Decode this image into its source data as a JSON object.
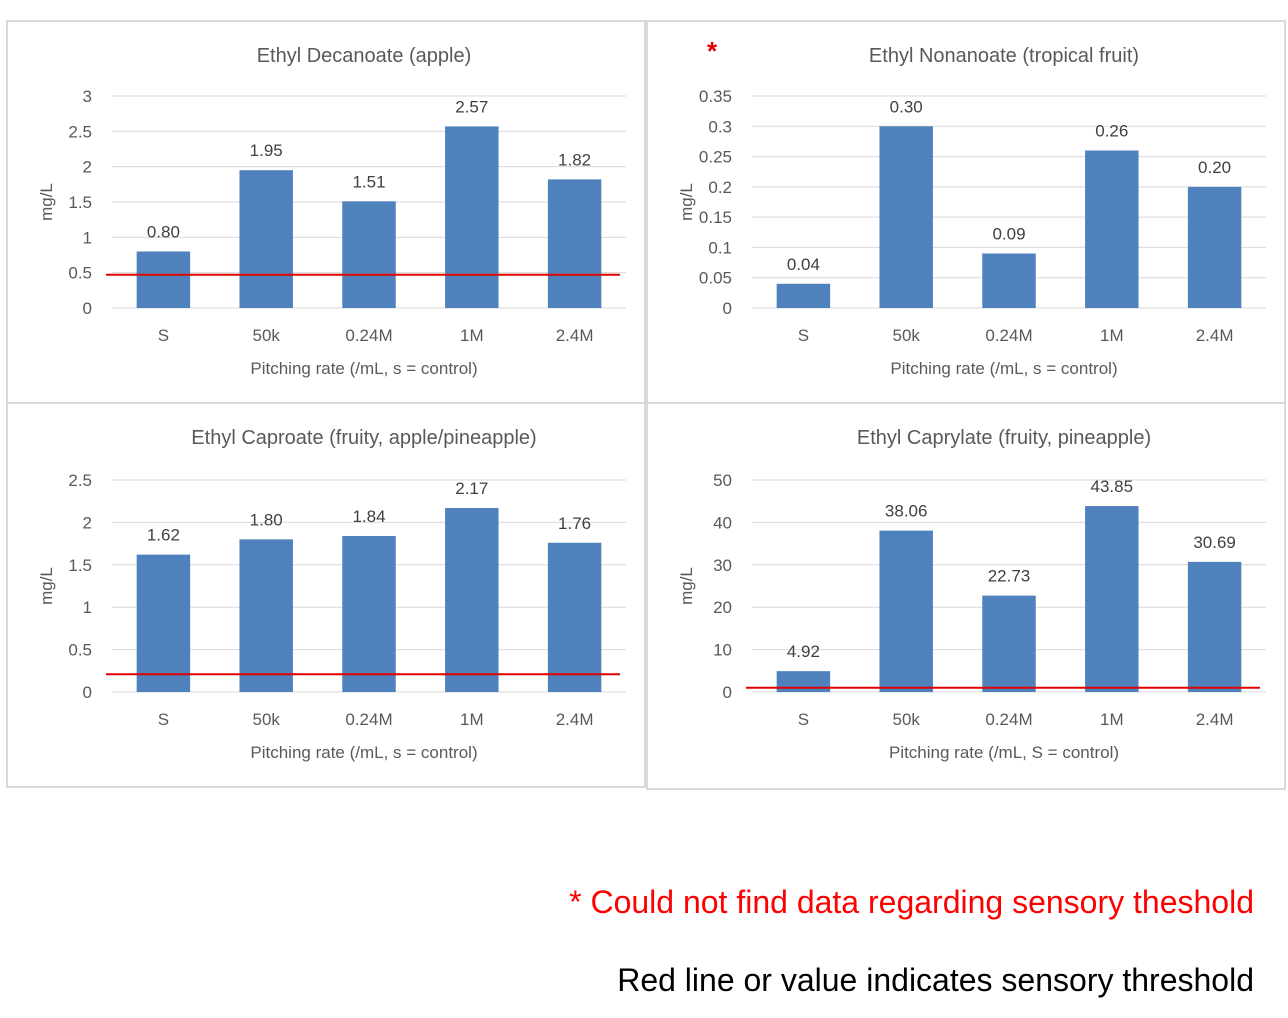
{
  "chart_data": [
    {
      "type": "bar",
      "title": "Ethyl Decanoate (apple)",
      "xlabel": "Pitching rate (/mL, s = control)",
      "ylabel": "mg/L",
      "categories": [
        "S",
        "50k",
        "0.24M",
        "1M",
        "2.4M"
      ],
      "values": [
        0.8,
        1.95,
        1.51,
        2.57,
        1.82
      ],
      "data_labels": [
        "0.80",
        "1.95",
        "1.51",
        "2.57",
        "1.82"
      ],
      "ylim": [
        0,
        3
      ],
      "yticks": [
        "0",
        "0.5",
        "1",
        "1.5",
        "2",
        "2.5",
        "3"
      ],
      "threshold": 0.47,
      "bar_color": "#4f81bd",
      "threshold_color": "#e00000",
      "grid": true,
      "marker": ""
    },
    {
      "type": "bar",
      "title": "Ethyl Nonanoate (tropical fruit)",
      "xlabel": "Pitching rate (/mL, s = control)",
      "ylabel": "mg/L",
      "categories": [
        "S",
        "50k",
        "0.24M",
        "1M",
        "2.4M"
      ],
      "values": [
        0.04,
        0.3,
        0.09,
        0.26,
        0.2
      ],
      "data_labels": [
        "0.04",
        "0.30",
        "0.09",
        "0.26",
        "0.20"
      ],
      "ylim": [
        0,
        0.35
      ],
      "yticks": [
        "0",
        "0.05",
        "0.1",
        "0.15",
        "0.2",
        "0.25",
        "0.3",
        "0.35"
      ],
      "threshold": null,
      "bar_color": "#4f81bd",
      "threshold_color": "#e00000",
      "grid": true,
      "marker": "*"
    },
    {
      "type": "bar",
      "title": "Ethyl Caproate (fruity, apple/pineapple)",
      "xlabel": "Pitching rate (/mL, s = control)",
      "ylabel": "mg/L",
      "categories": [
        "S",
        "50k",
        "0.24M",
        "1M",
        "2.4M"
      ],
      "values": [
        1.62,
        1.8,
        1.84,
        2.17,
        1.76
      ],
      "data_labels": [
        "1.62",
        "1.80",
        "1.84",
        "2.17",
        "1.76"
      ],
      "ylim": [
        0,
        2.5
      ],
      "yticks": [
        "0",
        "0.5",
        "1",
        "1.5",
        "2",
        "2.5"
      ],
      "threshold": 0.21,
      "bar_color": "#4f81bd",
      "threshold_color": "#e00000",
      "grid": true,
      "marker": ""
    },
    {
      "type": "bar",
      "title": "Ethyl Caprylate (fruity, pineapple)",
      "xlabel": "Pitching rate (/mL, S = control)",
      "ylabel": "mg/L",
      "categories": [
        "S",
        "50k",
        "0.24M",
        "1M",
        "2.4M"
      ],
      "values": [
        4.92,
        38.06,
        22.73,
        43.85,
        30.69
      ],
      "data_labels": [
        "4.92",
        "38.06",
        "22.73",
        "43.85",
        "30.69"
      ],
      "ylim": [
        0,
        50
      ],
      "yticks": [
        "0",
        "10",
        "20",
        "30",
        "40",
        "50"
      ],
      "threshold": 1.0,
      "bar_color": "#4f81bd",
      "threshold_color": "#e00000",
      "grid": true,
      "marker": ""
    }
  ],
  "notes": {
    "no_data": "* Could not find data regarding sensory theshold",
    "red_line": "Red line or value indicates sensory threshold"
  }
}
